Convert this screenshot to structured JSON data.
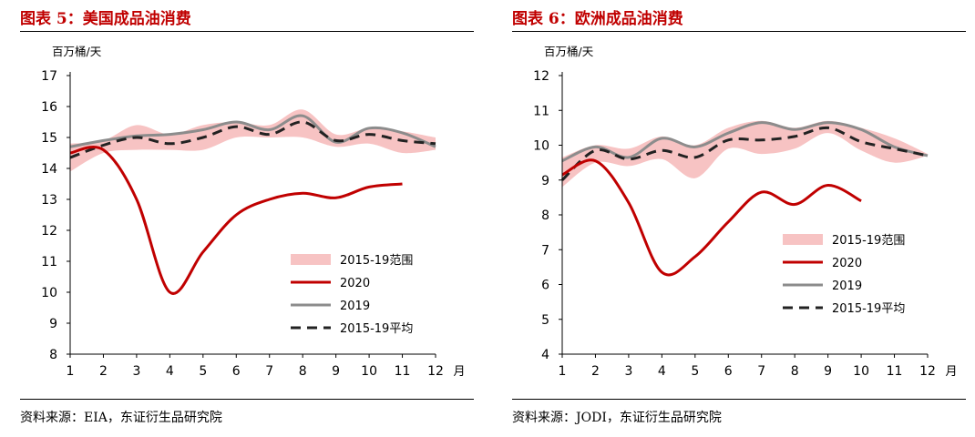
{
  "charts": [
    {
      "title": "图表 5：美国成品油消费",
      "source": "资料来源：EIA，东证衍生品研究院",
      "chart_data": {
        "type": "line",
        "unit_label": "百万桶/天",
        "x": [
          1,
          2,
          3,
          4,
          5,
          6,
          7,
          8,
          9,
          10,
          11,
          12
        ],
        "x_suffix": "月",
        "ylim": [
          8,
          17
        ],
        "yticks": [
          8,
          9,
          10,
          11,
          12,
          13,
          14,
          15,
          16,
          17
        ],
        "band": {
          "name": "2015-19范围",
          "low": [
            13.9,
            14.5,
            14.6,
            14.6,
            14.6,
            15.0,
            15.0,
            15.0,
            14.7,
            14.8,
            14.5,
            14.6
          ],
          "high": [
            14.8,
            14.9,
            15.4,
            15.1,
            15.4,
            15.5,
            15.4,
            15.9,
            15.1,
            15.3,
            15.2,
            15.0
          ]
        },
        "series": [
          {
            "name": "2020",
            "values": [
              14.5,
              14.6,
              13.0,
              10.0,
              11.3,
              12.5,
              13.0,
              13.2,
              13.05,
              13.4,
              13.5,
              null
            ]
          },
          {
            "name": "2019",
            "values": [
              14.7,
              14.9,
              15.05,
              15.1,
              15.25,
              15.5,
              15.25,
              15.7,
              14.85,
              15.3,
              15.15,
              14.7
            ]
          },
          {
            "name": "2015-19平均",
            "values": [
              14.35,
              14.75,
              15.0,
              14.8,
              15.0,
              15.35,
              15.1,
              15.5,
              14.9,
              15.1,
              14.9,
              14.8
            ]
          }
        ],
        "legend_position": "bottom-right",
        "grid": false,
        "colors": {
          "band": "#f7c3c3",
          "2020": "#c00000",
          "2019": "#8c8c8c",
          "avg": "#222222"
        }
      }
    },
    {
      "title": "图表 6：欧洲成品油消费",
      "source": "资料来源：JODI，东证衍生品研究院",
      "chart_data": {
        "type": "line",
        "unit_label": "百万桶/天",
        "x": [
          1,
          2,
          3,
          4,
          5,
          6,
          7,
          8,
          9,
          10,
          11,
          12
        ],
        "x_suffix": "月",
        "ylim": [
          4,
          12
        ],
        "yticks": [
          4,
          5,
          6,
          7,
          8,
          9,
          10,
          11,
          12
        ],
        "band": {
          "name": "2015-19范围",
          "low": [
            8.8,
            9.5,
            9.4,
            9.6,
            9.05,
            9.9,
            9.75,
            9.9,
            10.35,
            9.85,
            9.5,
            9.7
          ],
          "high": [
            9.65,
            10.0,
            9.9,
            10.25,
            10.0,
            10.5,
            10.7,
            10.5,
            10.7,
            10.5,
            10.2,
            9.75
          ]
        },
        "series": [
          {
            "name": "2020",
            "values": [
              9.15,
              9.55,
              8.35,
              6.35,
              6.8,
              7.8,
              8.65,
              8.3,
              8.85,
              8.4,
              null,
              null
            ]
          },
          {
            "name": "2019",
            "values": [
              9.55,
              9.95,
              9.65,
              10.2,
              9.95,
              10.35,
              10.65,
              10.45,
              10.65,
              10.45,
              9.95,
              9.7
            ]
          },
          {
            "name": "2015-19平均",
            "values": [
              9.0,
              9.85,
              9.6,
              9.85,
              9.65,
              10.15,
              10.15,
              10.25,
              10.5,
              10.1,
              9.9,
              9.7
            ]
          }
        ],
        "legend_position": "bottom-right",
        "grid": false,
        "colors": {
          "band": "#f7c3c3",
          "2020": "#c00000",
          "2019": "#8c8c8c",
          "avg": "#222222"
        }
      }
    }
  ]
}
